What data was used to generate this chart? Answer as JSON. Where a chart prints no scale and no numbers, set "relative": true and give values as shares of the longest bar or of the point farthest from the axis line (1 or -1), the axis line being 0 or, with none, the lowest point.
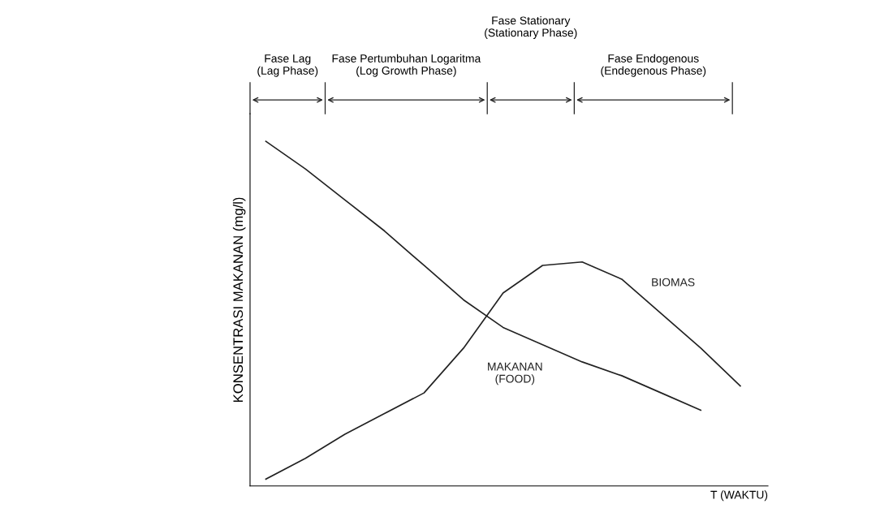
{
  "chart_data": {
    "type": "line",
    "relative": true,
    "xlabel": "T (WAKTU)",
    "ylabel": "KONSENTRASI MAKANAN (mg/l)",
    "categories": [
      null,
      null,
      null,
      null,
      null,
      null,
      null,
      null,
      null,
      null,
      null,
      null,
      null
    ],
    "series": [
      {
        "name": "BIOMAS",
        "color": "#222222",
        "values": [
          0.02,
          0.08,
          0.15,
          0.21,
          0.27,
          0.4,
          0.56,
          0.64,
          0.65,
          0.6,
          0.5,
          0.4,
          0.29
        ]
      },
      {
        "name": "MAKANAN\n(FOOD)",
        "color": "#222222",
        "values": [
          1.0,
          0.92,
          0.83,
          0.74,
          0.64,
          0.54,
          0.46,
          0.41,
          0.36,
          0.32,
          0.27,
          0.22,
          null
        ]
      }
    ],
    "annotations": [
      "Fase Lag\n(Lag Phase)",
      "Fase Pertumbuhan Logaritma\n(Log Growth Phase)",
      "Fase Stationary\n(Stationary Phase)",
      "Fase Endogenous\n(Endegenous Phase)"
    ],
    "legend": false,
    "marker": "none",
    "line_style": "solid"
  }
}
